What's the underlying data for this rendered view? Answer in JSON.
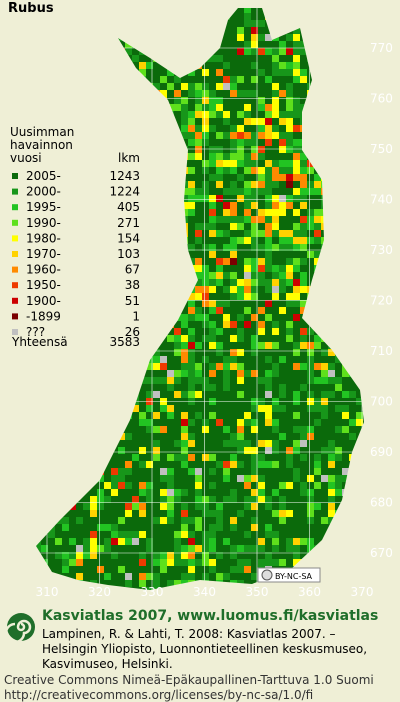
{
  "title": "Rubus",
  "legend": {
    "heading": [
      "Uusimman",
      "havainnon",
      "vuosi"
    ],
    "count_heading": "lkm",
    "rows": [
      {
        "label": "2005-",
        "count": "1243",
        "color": "#0b6a0b"
      },
      {
        "label": "2000-",
        "count": "1224",
        "color": "#17961a"
      },
      {
        "label": "1995-",
        "count": "405",
        "color": "#22c422"
      },
      {
        "label": "1990-",
        "count": "271",
        "color": "#5ee01c"
      },
      {
        "label": "1980-",
        "count": "154",
        "color": "#ffff00"
      },
      {
        "label": "1970-",
        "count": "103",
        "color": "#ffd200"
      },
      {
        "label": "1960-",
        "count": "67",
        "color": "#ff8a00"
      },
      {
        "label": "1950-",
        "count": "38",
        "color": "#ee3a00"
      },
      {
        "label": "1900-",
        "count": "51",
        "color": "#cc0000"
      },
      {
        "label": "-1899",
        "count": "1",
        "color": "#7a0000"
      },
      {
        "label": "???",
        "count": "26",
        "color": "#c0c0c0"
      }
    ],
    "total_label": "Yhteensä",
    "total": "3583"
  },
  "grid_labels": {
    "north": [
      "770",
      "760",
      "750",
      "740",
      "730",
      "720",
      "710",
      "700",
      "690",
      "680",
      "670"
    ],
    "east": [
      "310",
      "320",
      "330",
      "340",
      "350",
      "360",
      "370"
    ]
  },
  "license_badge": "BY-NC-SA",
  "footer": {
    "heading": "Kasviatlas 2007, www.luomus.fi/kasviatlas",
    "citation": [
      "Lampinen, R. & Lahti, T. 2008: Kasviatlas 2007. –",
      "Helsingin Yliopisto, Luonnontieteellinen keskusmuseo,",
      "Kasvimuseo, Helsinki."
    ],
    "license": [
      "Creative Commons Nimeä-Epäkaupallinen-Tarttuva 1.0 Suomi",
      "http://creativecommons.org/licenses/by-nc-sa/1.0/fi"
    ]
  }
}
